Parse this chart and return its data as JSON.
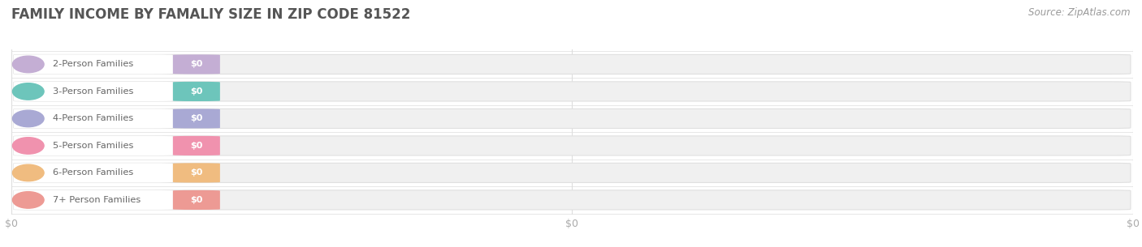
{
  "title": "FAMILY INCOME BY FAMALIY SIZE IN ZIP CODE 81522",
  "source_text": "Source: ZipAtlas.com",
  "categories": [
    "2-Person Families",
    "3-Person Families",
    "4-Person Families",
    "5-Person Families",
    "6-Person Families",
    "7+ Person Families"
  ],
  "values": [
    0,
    0,
    0,
    0,
    0,
    0
  ],
  "bar_colors": [
    "#c4aed4",
    "#6dc5bb",
    "#a9a9d4",
    "#f092ae",
    "#f0bc80",
    "#ed9a94"
  ],
  "value_label": "$0",
  "background_color": "#ffffff",
  "title_color": "#555555",
  "source_color": "#999999",
  "tick_label_color": "#aaaaaa",
  "bar_height": 0.72,
  "bar_bg_color": "#f0f0f0",
  "bar_edge_color": "#e0e0e0",
  "label_text_color": "#666666",
  "value_text_color": "#ffffff",
  "grid_color": "#dddddd",
  "xtick_labels": [
    "$0",
    "$0",
    "$0"
  ],
  "xtick_positions": [
    0.0,
    0.5,
    1.0
  ]
}
